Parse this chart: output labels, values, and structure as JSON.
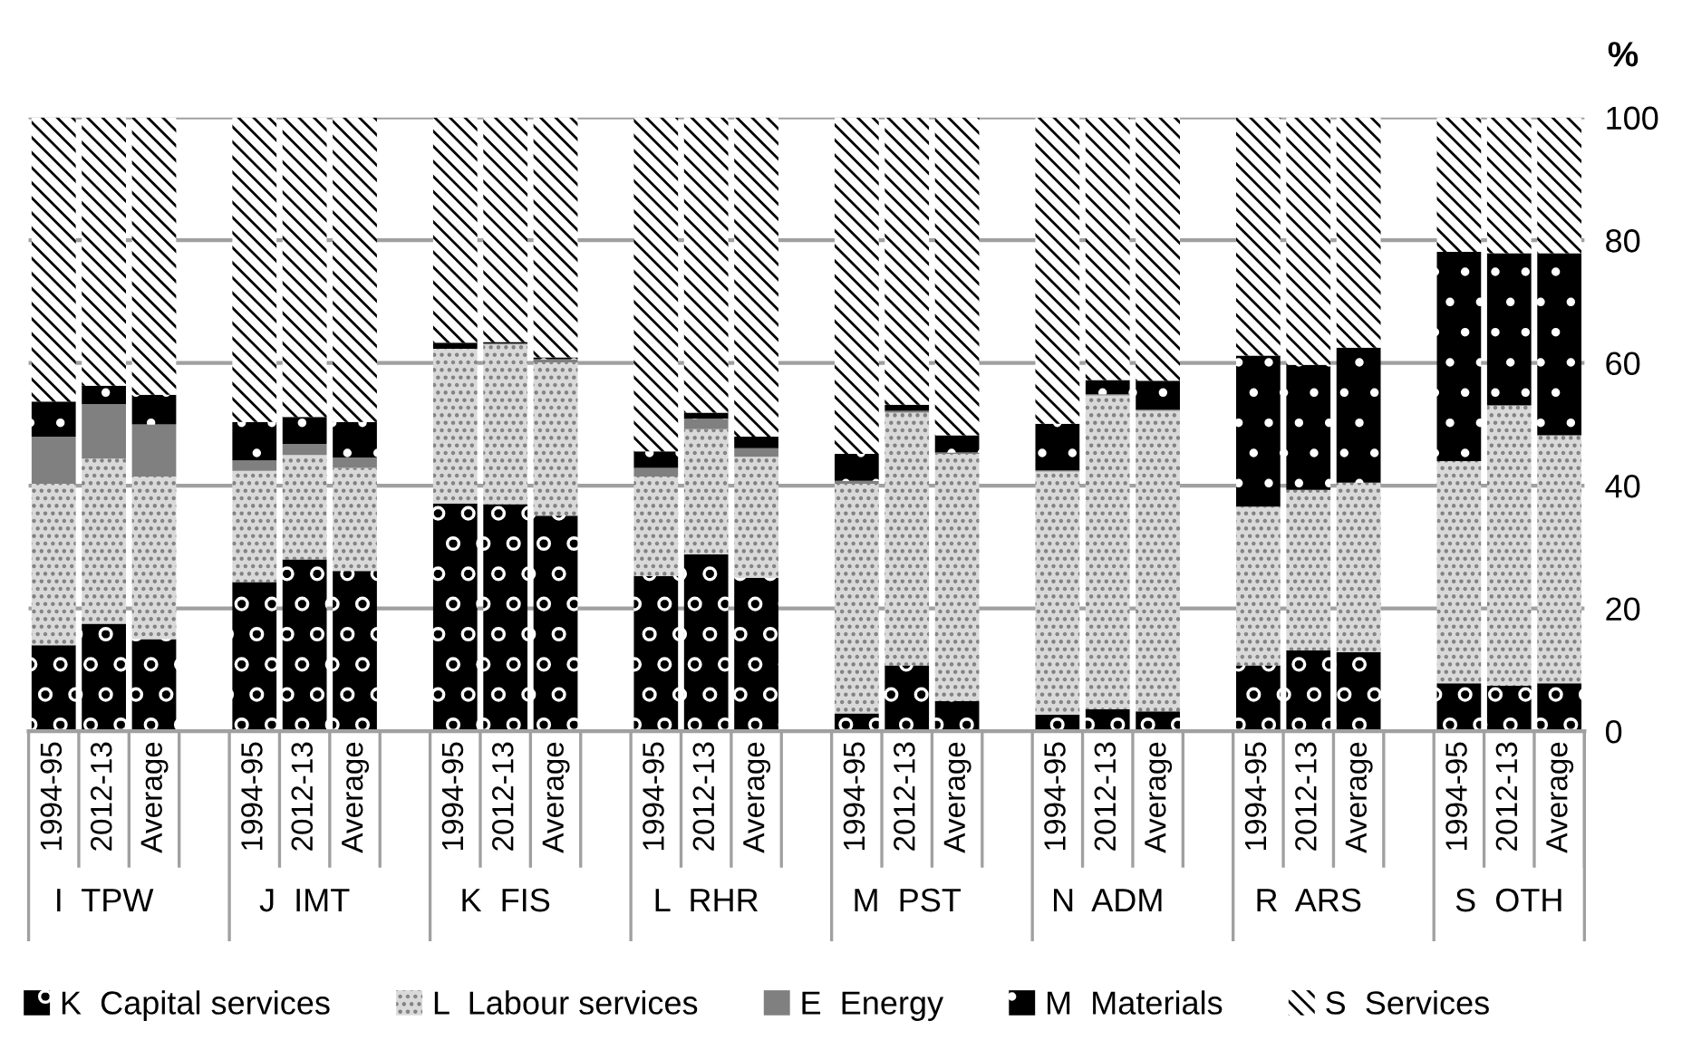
{
  "chart_data": {
    "type": "bar",
    "stacked": true,
    "categories": [
      "1994-95",
      "2012-13",
      "Average",
      null,
      "1994-95",
      "2012-13",
      "Average",
      null,
      "1994-95",
      "2012-13",
      "Average",
      null,
      "1994-95",
      "2012-13",
      "Average",
      null,
      "1994-95",
      "2012-13",
      "Average",
      null,
      "1994-95",
      "2012-13",
      "Average",
      null,
      "1994-95",
      "2012-13",
      "Average",
      null,
      "1994-95",
      "2012-13",
      "Average"
    ],
    "series": [
      {
        "name": "K  Capital services",
        "color": "#000000",
        "values": [
          14,
          17.5,
          15,
          null,
          24.3,
          28,
          26.1,
          null,
          37.1,
          37,
          35.1,
          null,
          25.3,
          28.8,
          25,
          null,
          2.9,
          10.7,
          4.9,
          null,
          2.7,
          3.6,
          3.2,
          null,
          10.7,
          13.2,
          12.9,
          null,
          7.8,
          7.4,
          7.8
        ]
      },
      {
        "name": "L  Labour services",
        "color": "#d9d9d9",
        "values": [
          26.3,
          26.9,
          26.5,
          null,
          18.1,
          17,
          16.8,
          null,
          25.2,
          26,
          25,
          null,
          16.2,
          20.4,
          19.7,
          null,
          37.4,
          41.2,
          40.3,
          null,
          39.6,
          51.1,
          49,
          null,
          25.9,
          26.1,
          27.6,
          null,
          36.2,
          45.7,
          40.4
        ]
      },
      {
        "name": "E  Energy",
        "color": "#808080",
        "values": [
          7.7,
          8.9,
          8.5,
          null,
          1.7,
          1.8,
          1.7,
          null,
          0,
          0.2,
          0.5,
          null,
          1.4,
          1.7,
          1.4,
          null,
          0.5,
          0.3,
          0.2,
          null,
          0.2,
          0.2,
          0.2,
          null,
          0,
          0,
          0,
          null,
          0,
          0,
          0
        ]
      },
      {
        "name": "M  Materials",
        "color": "#000000",
        "values": [
          5.7,
          3,
          4.8,
          null,
          6.3,
          4.4,
          5.8,
          null,
          1,
          0.2,
          0.3,
          null,
          2.7,
          1,
          1.9,
          null,
          4.4,
          1,
          2.8,
          null,
          7.6,
          2.3,
          4.7,
          null,
          24.6,
          20.4,
          22,
          null,
          34.1,
          24.8,
          29.7
        ]
      },
      {
        "name": "S  Services",
        "color": "#ffffff",
        "values": [
          46.3,
          43.7,
          45.2,
          null,
          49.6,
          48.8,
          49.6,
          null,
          36.7,
          36.6,
          39.1,
          null,
          54.4,
          48.1,
          52,
          null,
          54.8,
          46.8,
          51.8,
          null,
          49.9,
          42.8,
          42.9,
          null,
          38.8,
          40.3,
          37.5,
          null,
          21.9,
          22.1,
          22.1
        ]
      }
    ],
    "ylabel": "%",
    "ylim": [
      0,
      100
    ],
    "yticks": [
      0,
      20,
      40,
      60,
      80,
      100
    ],
    "grid": "y",
    "legend": "bottom",
    "annotations": [
      "I  TPW",
      "J  IMT",
      "K  FIS",
      "L  RHR",
      "M  PST",
      "N  ADM",
      "R  ARS",
      "S  OTH"
    ]
  }
}
